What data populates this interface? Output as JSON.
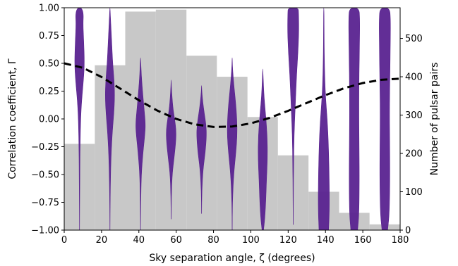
{
  "chart_data": {
    "type": "violin+histogram+line",
    "xlabel": "Sky separation angle, ζ (degrees)",
    "ylabel_left": "Correlation coefficient, Γ",
    "ylabel_right": "Number of pulsar pairs",
    "xlim": [
      0,
      180
    ],
    "ylim_left": [
      -1.0,
      1.0
    ],
    "ylim_right": [
      0,
      580
    ],
    "x_ticks": [
      "0",
      "20",
      "40",
      "60",
      "80",
      "100",
      "120",
      "140",
      "160",
      "180"
    ],
    "x_tick_values": [
      0,
      20,
      40,
      60,
      80,
      100,
      120,
      140,
      160,
      180
    ],
    "y_left_ticks": [
      "1.00",
      "0.75",
      "0.50",
      "0.25",
      "0.00",
      "−0.25",
      "−0.50",
      "−0.75",
      "−1.00"
    ],
    "y_left_tick_values": [
      1.0,
      0.75,
      0.5,
      0.25,
      0.0,
      -0.25,
      -0.5,
      -0.75,
      -1.0
    ],
    "y_right_ticks": [
      "0",
      "100",
      "200",
      "300",
      "400",
      "500"
    ],
    "y_right_tick_values": [
      0,
      100,
      200,
      300,
      400,
      500
    ],
    "histogram": {
      "bin_edges": [
        0,
        16.4,
        32.7,
        49.1,
        65.5,
        81.8,
        98.2,
        114.5,
        130.9,
        147.3,
        163.6,
        180
      ],
      "counts": [
        225,
        430,
        570,
        575,
        455,
        400,
        295,
        195,
        100,
        45,
        15
      ],
      "color": "#c8c8c8"
    },
    "hellings_downs_curve": {
      "style": "dashed",
      "color": "#000000",
      "x": [
        0,
        10,
        20,
        30,
        40,
        50,
        60,
        70,
        80,
        90,
        100,
        110,
        120,
        130,
        140,
        150,
        160,
        170,
        180
      ],
      "y": [
        0.5,
        0.46,
        0.377,
        0.273,
        0.168,
        0.074,
        0.0,
        -0.049,
        -0.072,
        -0.068,
        -0.04,
        0.009,
        0.073,
        0.144,
        0.214,
        0.276,
        0.323,
        0.352,
        0.362
      ]
    },
    "violins": {
      "color": "#5a2390",
      "items": [
        {
          "x": 8.2,
          "width": 14,
          "profile": [
            [
              -1.0,
              0.01
            ],
            [
              -0.6,
              0.05
            ],
            [
              -0.2,
              0.12
            ],
            [
              0.1,
              0.3
            ],
            [
              0.35,
              0.8
            ],
            [
              0.5,
              1.0
            ],
            [
              0.7,
              0.85
            ],
            [
              0.85,
              0.7
            ],
            [
              0.95,
              0.8
            ],
            [
              1.0,
              0.4
            ]
          ]
        },
        {
          "x": 24.5,
          "width": 14,
          "profile": [
            [
              -1.0,
              0.01
            ],
            [
              -0.7,
              0.05
            ],
            [
              -0.35,
              0.2
            ],
            [
              -0.1,
              0.5
            ],
            [
              0.05,
              0.8
            ],
            [
              0.2,
              0.95
            ],
            [
              0.35,
              0.85
            ],
            [
              0.5,
              0.55
            ],
            [
              0.7,
              0.35
            ],
            [
              0.9,
              0.12
            ],
            [
              1.0,
              0.02
            ]
          ]
        },
        {
          "x": 40.9,
          "width": 14,
          "profile": [
            [
              -1.0,
              0.01
            ],
            [
              -0.75,
              0.05
            ],
            [
              -0.5,
              0.15
            ],
            [
              -0.3,
              0.5
            ],
            [
              -0.15,
              0.85
            ],
            [
              -0.05,
              1.0
            ],
            [
              0.1,
              0.7
            ],
            [
              0.25,
              0.4
            ],
            [
              0.4,
              0.15
            ],
            [
              0.55,
              0.02
            ]
          ]
        },
        {
          "x": 57.3,
          "width": 14,
          "profile": [
            [
              -0.9,
              0.01
            ],
            [
              -0.7,
              0.05
            ],
            [
              -0.5,
              0.2
            ],
            [
              -0.35,
              0.6
            ],
            [
              -0.2,
              0.95
            ],
            [
              -0.1,
              1.0
            ],
            [
              0.0,
              0.7
            ],
            [
              0.1,
              0.35
            ],
            [
              0.25,
              0.1
            ],
            [
              0.35,
              0.01
            ]
          ]
        },
        {
          "x": 73.6,
          "width": 14,
          "profile": [
            [
              -0.85,
              0.01
            ],
            [
              -0.65,
              0.05
            ],
            [
              -0.45,
              0.3
            ],
            [
              -0.3,
              0.75
            ],
            [
              -0.15,
              1.0
            ],
            [
              -0.05,
              0.9
            ],
            [
              0.05,
              0.55
            ],
            [
              0.15,
              0.25
            ],
            [
              0.25,
              0.05
            ],
            [
              0.3,
              0.01
            ]
          ]
        },
        {
          "x": 90.0,
          "width": 14,
          "profile": [
            [
              -1.0,
              0.01
            ],
            [
              -0.75,
              0.05
            ],
            [
              -0.5,
              0.3
            ],
            [
              -0.3,
              0.75
            ],
            [
              -0.15,
              1.0
            ],
            [
              0.0,
              0.95
            ],
            [
              0.15,
              0.7
            ],
            [
              0.3,
              0.35
            ],
            [
              0.45,
              0.08
            ],
            [
              0.55,
              0.01
            ]
          ]
        },
        {
          "x": 106.4,
          "width": 14,
          "profile": [
            [
              -1.0,
              0.15
            ],
            [
              -0.9,
              0.4
            ],
            [
              -0.75,
              0.6
            ],
            [
              -0.55,
              0.75
            ],
            [
              -0.35,
              0.95
            ],
            [
              -0.15,
              0.9
            ],
            [
              0.05,
              0.55
            ],
            [
              0.2,
              0.25
            ],
            [
              0.35,
              0.1
            ],
            [
              0.45,
              0.01
            ]
          ]
        },
        {
          "x": 122.7,
          "width": 16,
          "profile": [
            [
              -0.95,
              0.01
            ],
            [
              -0.7,
              0.03
            ],
            [
              -0.4,
              0.08
            ],
            [
              -0.15,
              0.15
            ],
            [
              0.1,
              0.35
            ],
            [
              0.4,
              0.6
            ],
            [
              0.6,
              0.85
            ],
            [
              0.8,
              1.0
            ],
            [
              0.95,
              0.95
            ],
            [
              1.0,
              0.9
            ]
          ]
        },
        {
          "x": 139.1,
          "width": 16,
          "profile": [
            [
              -1.0,
              0.85
            ],
            [
              -0.8,
              1.0
            ],
            [
              -0.5,
              0.95
            ],
            [
              -0.2,
              0.8
            ],
            [
              0.0,
              0.6
            ],
            [
              0.2,
              0.3
            ],
            [
              0.4,
              0.15
            ],
            [
              0.6,
              0.08
            ],
            [
              0.8,
              0.05
            ],
            [
              1.0,
              0.03
            ]
          ]
        },
        {
          "x": 155.4,
          "width": 16,
          "profile": [
            [
              -1.0,
              0.6
            ],
            [
              -0.85,
              0.85
            ],
            [
              -0.5,
              0.9
            ],
            [
              -0.2,
              0.85
            ],
            [
              0.1,
              0.82
            ],
            [
              0.4,
              0.85
            ],
            [
              0.7,
              0.95
            ],
            [
              0.9,
              0.98
            ],
            [
              1.0,
              0.85
            ]
          ]
        },
        {
          "x": 171.8,
          "width": 16,
          "profile": [
            [
              -1.0,
              0.5
            ],
            [
              -0.85,
              0.8
            ],
            [
              -0.5,
              0.9
            ],
            [
              -0.2,
              0.85
            ],
            [
              0.1,
              0.82
            ],
            [
              0.4,
              0.9
            ],
            [
              0.7,
              0.98
            ],
            [
              0.9,
              1.0
            ],
            [
              1.0,
              0.85
            ]
          ]
        }
      ]
    }
  }
}
